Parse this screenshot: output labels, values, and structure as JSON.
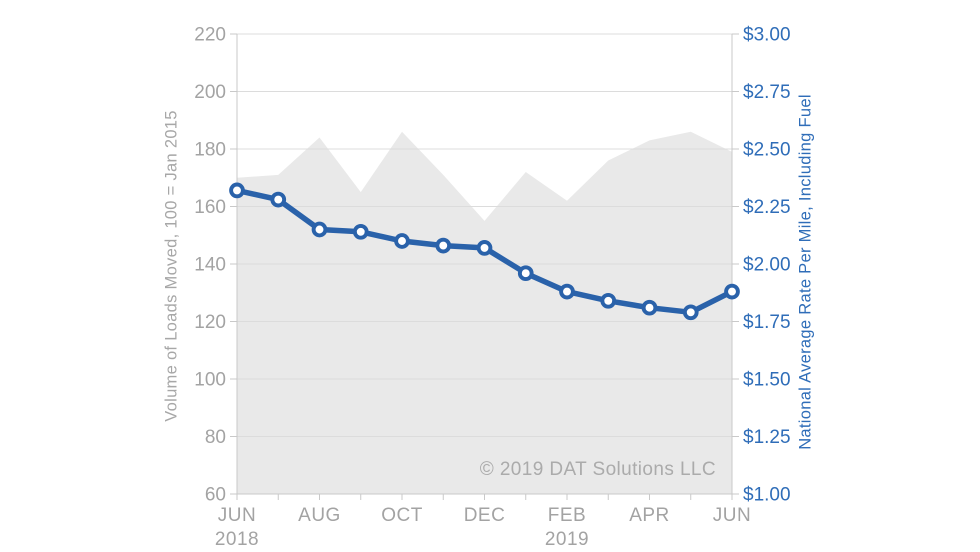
{
  "chart_data": {
    "type": "combo-area-line",
    "months": [
      "JUN 2018",
      "JUL 2018",
      "AUG 2018",
      "SEP 2018",
      "OCT 2018",
      "NOV 2018",
      "DEC 2018",
      "JAN 2019",
      "FEB 2019",
      "MAR 2019",
      "APR 2019",
      "MAY 2019",
      "JUN 2019"
    ],
    "series": [
      {
        "name": "Volume of Loads Moved",
        "type": "area",
        "axis": "left",
        "color": "#e9e9e9",
        "values": [
          170,
          171,
          184,
          165,
          186,
          171,
          155,
          172,
          162,
          176,
          183,
          186,
          179
        ]
      },
      {
        "name": "National Average Rate Per Mile",
        "type": "line",
        "axis": "right",
        "color": "#2a62aa",
        "marker_fill": "#ffffff",
        "values": [
          2.32,
          2.28,
          2.15,
          2.14,
          2.1,
          2.08,
          2.07,
          1.96,
          1.88,
          1.84,
          1.81,
          1.79,
          1.88
        ]
      }
    ],
    "left_axis": {
      "label": "Volume of Loads Moved, 100 = Jan 2015",
      "min": 60,
      "max": 220,
      "step": 20,
      "tick_labels": [
        "220",
        "200",
        "180",
        "160",
        "140",
        "120",
        "100",
        "80",
        "60"
      ]
    },
    "right_axis": {
      "label": "National Average Rate Per Mile, Including Fuel",
      "min": 1.0,
      "max": 3.0,
      "step": 0.25,
      "tick_labels": [
        "$3.00",
        "$2.75",
        "$2.50",
        "$2.25",
        "$2.00",
        "$1.75",
        "$1.50",
        "$1.25",
        "$1.00"
      ]
    },
    "x_axis": {
      "labeled_ticks": [
        {
          "index": 0,
          "label": "JUN",
          "year": "2018"
        },
        {
          "index": 2,
          "label": "AUG"
        },
        {
          "index": 4,
          "label": "OCT"
        },
        {
          "index": 6,
          "label": "DEC"
        },
        {
          "index": 8,
          "label": "FEB",
          "year": "2019"
        },
        {
          "index": 10,
          "label": "APR"
        },
        {
          "index": 12,
          "label": "JUN"
        }
      ]
    },
    "watermark": "© 2019 DAT Solutions LLC",
    "grid": true,
    "legend_position": "none",
    "colors": {
      "grid": "#dcdcdc",
      "axis": "#c9c9c9",
      "left_text": "#a3a3a3",
      "right_text": "#2f6db8",
      "watermark": "#ababab"
    }
  }
}
